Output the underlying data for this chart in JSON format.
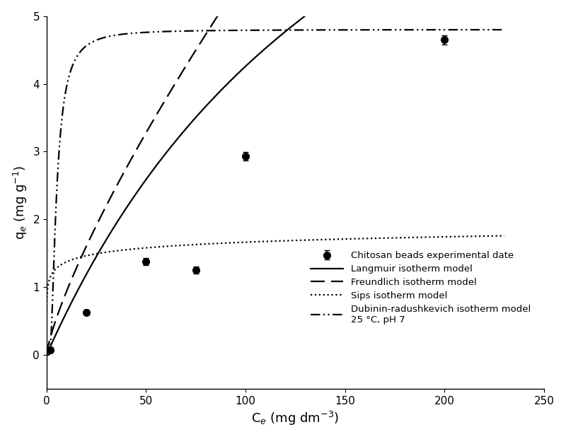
{
  "exp_x": [
    2,
    20,
    50,
    75,
    100,
    200
  ],
  "exp_y": [
    0.07,
    0.63,
    1.38,
    1.25,
    2.93,
    4.65
  ],
  "exp_yerr": [
    0.04,
    0.04,
    0.05,
    0.05,
    0.06,
    0.07
  ],
  "langmuir_params": {
    "qm": 12.0,
    "KL": 0.0055
  },
  "freundlich_params": {
    "KF": 0.155,
    "n": 0.78
  },
  "sips_params": {
    "qm": 2.45,
    "Ks": 0.3,
    "ns": 0.22
  },
  "dr_params": {
    "qm": 4.8,
    "B": 3.5e-06
  },
  "xlim": [
    0,
    250
  ],
  "ylim": [
    -0.5,
    5.0
  ],
  "yticks": [
    0,
    1,
    2,
    3,
    4,
    5
  ],
  "xticks": [
    0,
    50,
    100,
    150,
    200,
    250
  ],
  "xlabel": "C$_e$ (mg dm$^{-3}$)",
  "ylabel": "q$_e$ (mg g$^{-1}$)",
  "legend_labels": [
    "Chitosan beads experimental date",
    "Langmuir isotherm model",
    "Freundlich isotherm model",
    "Sips isotherm model",
    "Dubinin-radushkevich isotherm model\n25 °C, pH 7"
  ],
  "line_color": "#000000",
  "bg_color": "#ffffff"
}
